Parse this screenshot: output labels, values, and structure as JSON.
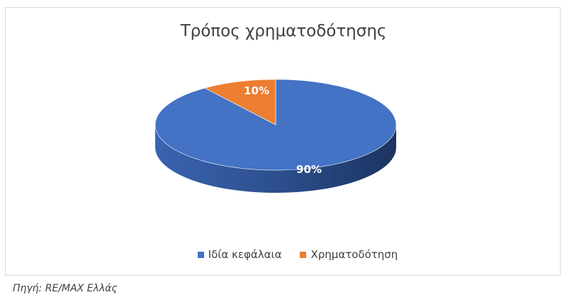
{
  "chart_data": {
    "type": "pie",
    "style": "3d",
    "title": "Τρόπος χρηματοδότησης",
    "categories": [
      "Ιδία κεφάλαια",
      "Χρηματοδότηση"
    ],
    "values": [
      90,
      10
    ],
    "data_labels": [
      "90%",
      "10%"
    ],
    "colors": [
      "#4472c4",
      "#ed7d31"
    ],
    "legend_placement": "bottom"
  },
  "source": "Πηγή: RE/MAX Ελλάς"
}
